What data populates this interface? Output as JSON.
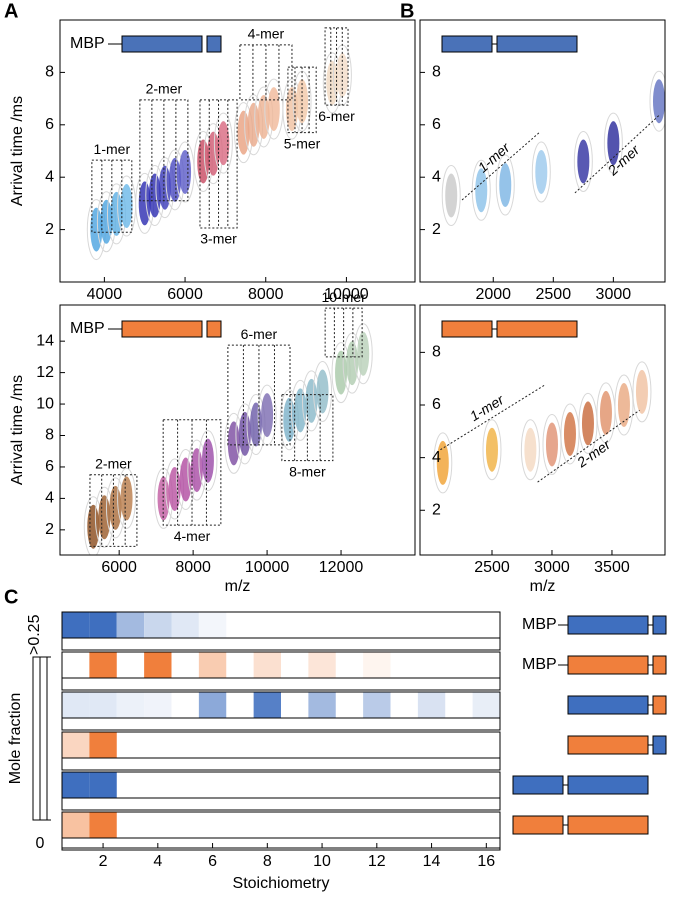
{
  "panel_labels": [
    "A",
    "B",
    "C"
  ],
  "constructs": {
    "labels": [
      "MBP",
      "MBP"
    ]
  },
  "chart_data": [
    {
      "type": "scatter",
      "ylabel": "Arrival time /ms",
      "inset_label": "MBP",
      "color": "#4a72b8",
      "xlim": [
        2900,
        11700
      ],
      "ylim": [
        0,
        10
      ],
      "xticks": [
        4000,
        6000,
        8000,
        10000
      ],
      "yticks": [
        2,
        4,
        6,
        8
      ],
      "x": [
        3800,
        4050,
        4300,
        4550,
        5000,
        5250,
        5500,
        5750,
        6000,
        6450,
        6700,
        6950,
        7450,
        7700,
        7950,
        8200,
        8650,
        8900,
        9650,
        9900
      ],
      "y": [
        2.0,
        2.3,
        2.6,
        2.9,
        3.0,
        3.3,
        3.6,
        3.9,
        4.2,
        4.6,
        4.9,
        5.3,
        5.7,
        6.0,
        6.3,
        6.6,
        6.6,
        6.9,
        7.6,
        7.9
      ],
      "colors": [
        "#4aa3e0",
        "#4aa3e0",
        "#5aaee4",
        "#6ab8e8",
        "#2a2ab0",
        "#2a2ab0",
        "#3838b8",
        "#4848c0",
        "#5a5ac8",
        "#c84860",
        "#d05870",
        "#d86880",
        "#e8a080",
        "#e8a888",
        "#ecb090",
        "#f0b898",
        "#f0c0a0",
        "#f2c8a8",
        "#f0d8c0",
        "#f2dcc8"
      ],
      "annotations": [
        {
          "text": "1-mer",
          "shape": "box",
          "label_pos": "above",
          "x": [
            3690,
            4680
          ],
          "y": [
            1.9,
            4.65
          ]
        },
        {
          "text": "2-mer",
          "shape": "box",
          "label_pos": "above",
          "x": [
            4880,
            6070
          ],
          "y": [
            3.1,
            6.95
          ]
        },
        {
          "text": "3-mer",
          "shape": "box",
          "label_pos": "below",
          "x": [
            6370,
            7290
          ],
          "y": [
            2.06,
            6.95
          ]
        },
        {
          "text": "4-mer",
          "shape": "box",
          "label_pos": "above",
          "x": [
            7360,
            8650
          ],
          "y": [
            6.95,
            9.05
          ]
        },
        {
          "text": "5-mer",
          "shape": "box",
          "label_pos": "below",
          "x": [
            8550,
            9250
          ],
          "y": [
            5.7,
            8.2
          ]
        },
        {
          "text": "6-mer",
          "shape": "box",
          "label_pos": "below",
          "x": [
            9470,
            10040
          ],
          "y": [
            6.75,
            9.7
          ]
        }
      ]
    },
    {
      "type": "scatter",
      "ylabel": "Arrival time /ms",
      "xlabel": "m/z",
      "inset_label": "MBP",
      "color": "#f07f3c",
      "xlim": [
        4400,
        14000
      ],
      "ylim": [
        0.4,
        16.3
      ],
      "xticks": [
        6000,
        8000,
        10000,
        12000
      ],
      "yticks": [
        2,
        4,
        6,
        8,
        10,
        12,
        14
      ],
      "x": [
        5300,
        5600,
        5900,
        6200,
        7200,
        7500,
        7800,
        8100,
        8400,
        9100,
        9400,
        9700,
        10000,
        10600,
        10900,
        11200,
        11500,
        12000,
        12300,
        12600
      ],
      "y": [
        2.2,
        2.8,
        3.4,
        4.0,
        4.0,
        4.6,
        5.2,
        5.8,
        6.4,
        7.5,
        8.1,
        8.7,
        9.3,
        9.0,
        9.6,
        10.2,
        10.8,
        12.0,
        12.6,
        13.2
      ],
      "colors": [
        "#8a4a1a",
        "#9a5a28",
        "#a86a38",
        "#b87a48",
        "#c05aa0",
        "#b850a0",
        "#b04aa0",
        "#a84aa4",
        "#9a4aa8",
        "#7a4aa0",
        "#6a4aa0",
        "#6a5aa8",
        "#7a6ab0",
        "#7ab0c8",
        "#80b4c8",
        "#88b8c8",
        "#90bcc8",
        "#a8c8a8",
        "#b0ccb0",
        "#b8d0b8"
      ],
      "annotations": [
        {
          "text": "2-mer",
          "shape": "box",
          "label_pos": "above",
          "x": [
            5210,
            6480
          ],
          "y": [
            0.95,
            5.5
          ]
        },
        {
          "text": "4-mer",
          "shape": "box",
          "label_pos": "below",
          "x": [
            7190,
            8750
          ],
          "y": [
            2.3,
            9.0
          ]
        },
        {
          "text": "6-mer",
          "shape": "box",
          "label_pos": "above",
          "x": [
            8940,
            10620
          ],
          "y": [
            7.4,
            13.75
          ]
        },
        {
          "text": "8-mer",
          "shape": "box",
          "label_pos": "below",
          "x": [
            10400,
            11780
          ],
          "y": [
            6.4,
            10.6
          ]
        },
        {
          "text": "10-mer",
          "shape": "box",
          "label_pos": "above",
          "x": [
            11570,
            12570
          ],
          "y": [
            13.0,
            16.1
          ]
        }
      ]
    },
    {
      "type": "scatter",
      "color": "#4a72b8",
      "xlim": [
        1390,
        3430
      ],
      "ylim": [
        0,
        10
      ],
      "xticks": [
        2000,
        2500,
        3000
      ],
      "yticks": [
        2,
        4,
        6,
        8
      ],
      "x": [
        1650,
        1900,
        2100,
        2400,
        2750,
        3000,
        3380
      ],
      "y": [
        3.3,
        3.5,
        3.7,
        4.2,
        4.6,
        5.3,
        6.9
      ],
      "colors": [
        "#c8c8c8",
        "#8ac0e8",
        "#7ab4e4",
        "#9ac8ec",
        "#3030a0",
        "#28289a",
        "#6070c0"
      ],
      "annotations": [
        {
          "text": "1-mer",
          "shape": "line",
          "x": [
            1740,
            2390
          ],
          "y": [
            3.13,
            5.73
          ]
        },
        {
          "text": "2-mer",
          "shape": "line",
          "x": [
            2680,
            3390
          ],
          "y": [
            3.4,
            6.4
          ]
        }
      ]
    },
    {
      "type": "scatter",
      "xlabel": "m/z",
      "color": "#f07f3c",
      "xlim": [
        1900,
        3942
      ],
      "ylim": [
        0.3,
        9.8
      ],
      "xticks": [
        2500,
        3000,
        3500
      ],
      "yticks": [
        2,
        4,
        6,
        8
      ],
      "x": [
        2090,
        2500,
        2820,
        3000,
        3150,
        3300,
        3450,
        3600,
        3750
      ],
      "y": [
        3.8,
        4.3,
        4.3,
        4.5,
        4.9,
        5.3,
        5.7,
        6.0,
        6.5
      ],
      "colors": [
        "#f0a030",
        "#f0b040",
        "#f4d8c0",
        "#e09070",
        "#d07040",
        "#c86838",
        "#e09068",
        "#e8a880",
        "#f0c0a0"
      ],
      "annotations": [
        {
          "text": "1-mer",
          "shape": "line",
          "x": [
            2070,
            2940
          ],
          "y": [
            4.3,
            6.76
          ]
        },
        {
          "text": "2-mer",
          "shape": "line",
          "x": [
            2880,
            3730
          ],
          "y": [
            3.07,
            5.8
          ]
        }
      ]
    },
    {
      "type": "heatmap",
      "xlabel": "Stoichiometry",
      "colorbar_label": "Mole fraction",
      "xlim": [
        0.5,
        16.5
      ],
      "xticks": [
        2,
        4,
        6,
        8,
        10,
        12,
        14,
        16
      ],
      "x": [
        1,
        2,
        3,
        4,
        5,
        6,
        7,
        8,
        9,
        10,
        11,
        12,
        13,
        14,
        15,
        16
      ],
      "clim": [
        0,
        0.25
      ],
      "cticks": [
        0,
        {
          "value": 0.25,
          "label": ">0.25"
        }
      ],
      "colors": [
        "#3f6fbf",
        "#f07f3c"
      ],
      "rows": [
        {
          "color": "#3f6fbf",
          "values": [
            0.25,
            0.25,
            0.12,
            0.07,
            0.04,
            0.015,
            null,
            null,
            null,
            null,
            null,
            null,
            null,
            null,
            null,
            null
          ]
        },
        {
          "color": "#f07f3c",
          "values": [
            null,
            0.25,
            null,
            0.25,
            null,
            0.1,
            null,
            0.06,
            null,
            0.05,
            null,
            0.02,
            null,
            null,
            null,
            null
          ]
        },
        {
          "color": "#3f6fbf",
          "values": [
            0.04,
            0.04,
            0.025,
            0.02,
            null,
            0.15,
            null,
            0.22,
            null,
            0.12,
            null,
            0.09,
            null,
            0.05,
            null,
            0.03
          ]
        },
        {
          "color": "#f07f3c",
          "values": [
            0.08,
            0.25,
            null,
            null,
            null,
            null,
            null,
            null,
            null,
            null,
            null,
            null,
            null,
            null,
            null,
            null
          ]
        },
        {
          "color": "#3f6fbf",
          "values": [
            0.25,
            0.25,
            null,
            null,
            null,
            null,
            null,
            null,
            null,
            null,
            null,
            null,
            null,
            null,
            null,
            null
          ]
        },
        {
          "color": "#f07f3c",
          "values": [
            0.12,
            0.25,
            null,
            null,
            null,
            null,
            null,
            null,
            null,
            null,
            null,
            null,
            null,
            null,
            null,
            null
          ]
        }
      ]
    }
  ]
}
